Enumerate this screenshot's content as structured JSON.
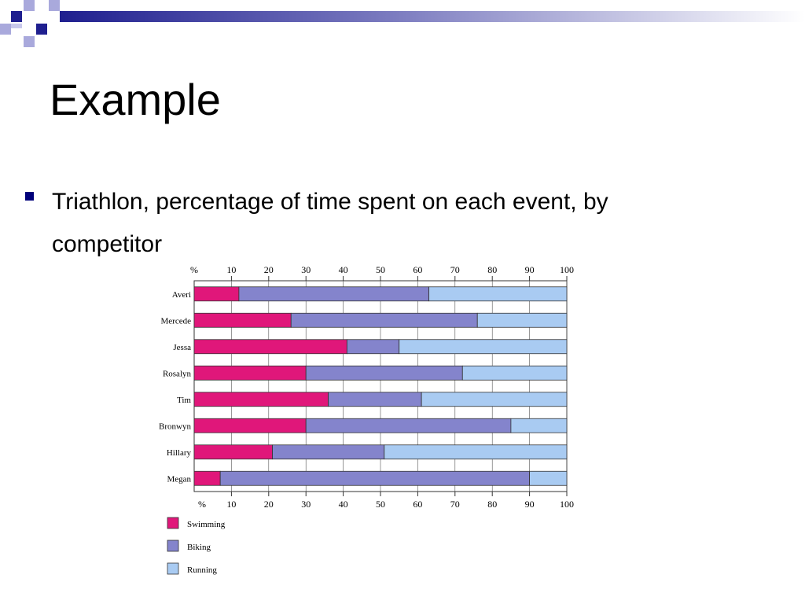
{
  "colors": {
    "deco_dark": "#1f1f8f",
    "deco_light": "#a9a9dc",
    "bullet": "#00007a",
    "title": "#000000"
  },
  "slide": {
    "title": "Example",
    "bullet": "Triathlon, percentage of time spent on each event, by competitor"
  },
  "chart_data": {
    "type": "bar",
    "orientation": "horizontal",
    "stacked": true,
    "title": "",
    "axis_unit_label": "%",
    "xlim": [
      0,
      100
    ],
    "x_ticks": [
      10,
      20,
      30,
      40,
      50,
      60,
      70,
      80,
      90,
      100
    ],
    "tick_labels": [
      "10",
      "20",
      "30",
      "40",
      "50",
      "60",
      "70",
      "80",
      "90",
      "100"
    ],
    "categories": [
      "Averi",
      "Mercede",
      "Jessa",
      "Rosalyn",
      "Tim",
      "Bronwyn",
      "Hillary",
      "Megan"
    ],
    "series": [
      {
        "name": "Swimming",
        "color": "#e0177a",
        "values": [
          12,
          26,
          41,
          30,
          36,
          30,
          21,
          7
        ]
      },
      {
        "name": "Biking",
        "color": "#8484cc",
        "values": [
          51,
          50,
          14,
          42,
          25,
          55,
          30,
          83
        ]
      },
      {
        "name": "Running",
        "color": "#a9cbf2",
        "values": [
          37,
          24,
          45,
          28,
          39,
          15,
          49,
          10
        ]
      }
    ],
    "grid": true,
    "legend_position": "bottom-left"
  }
}
